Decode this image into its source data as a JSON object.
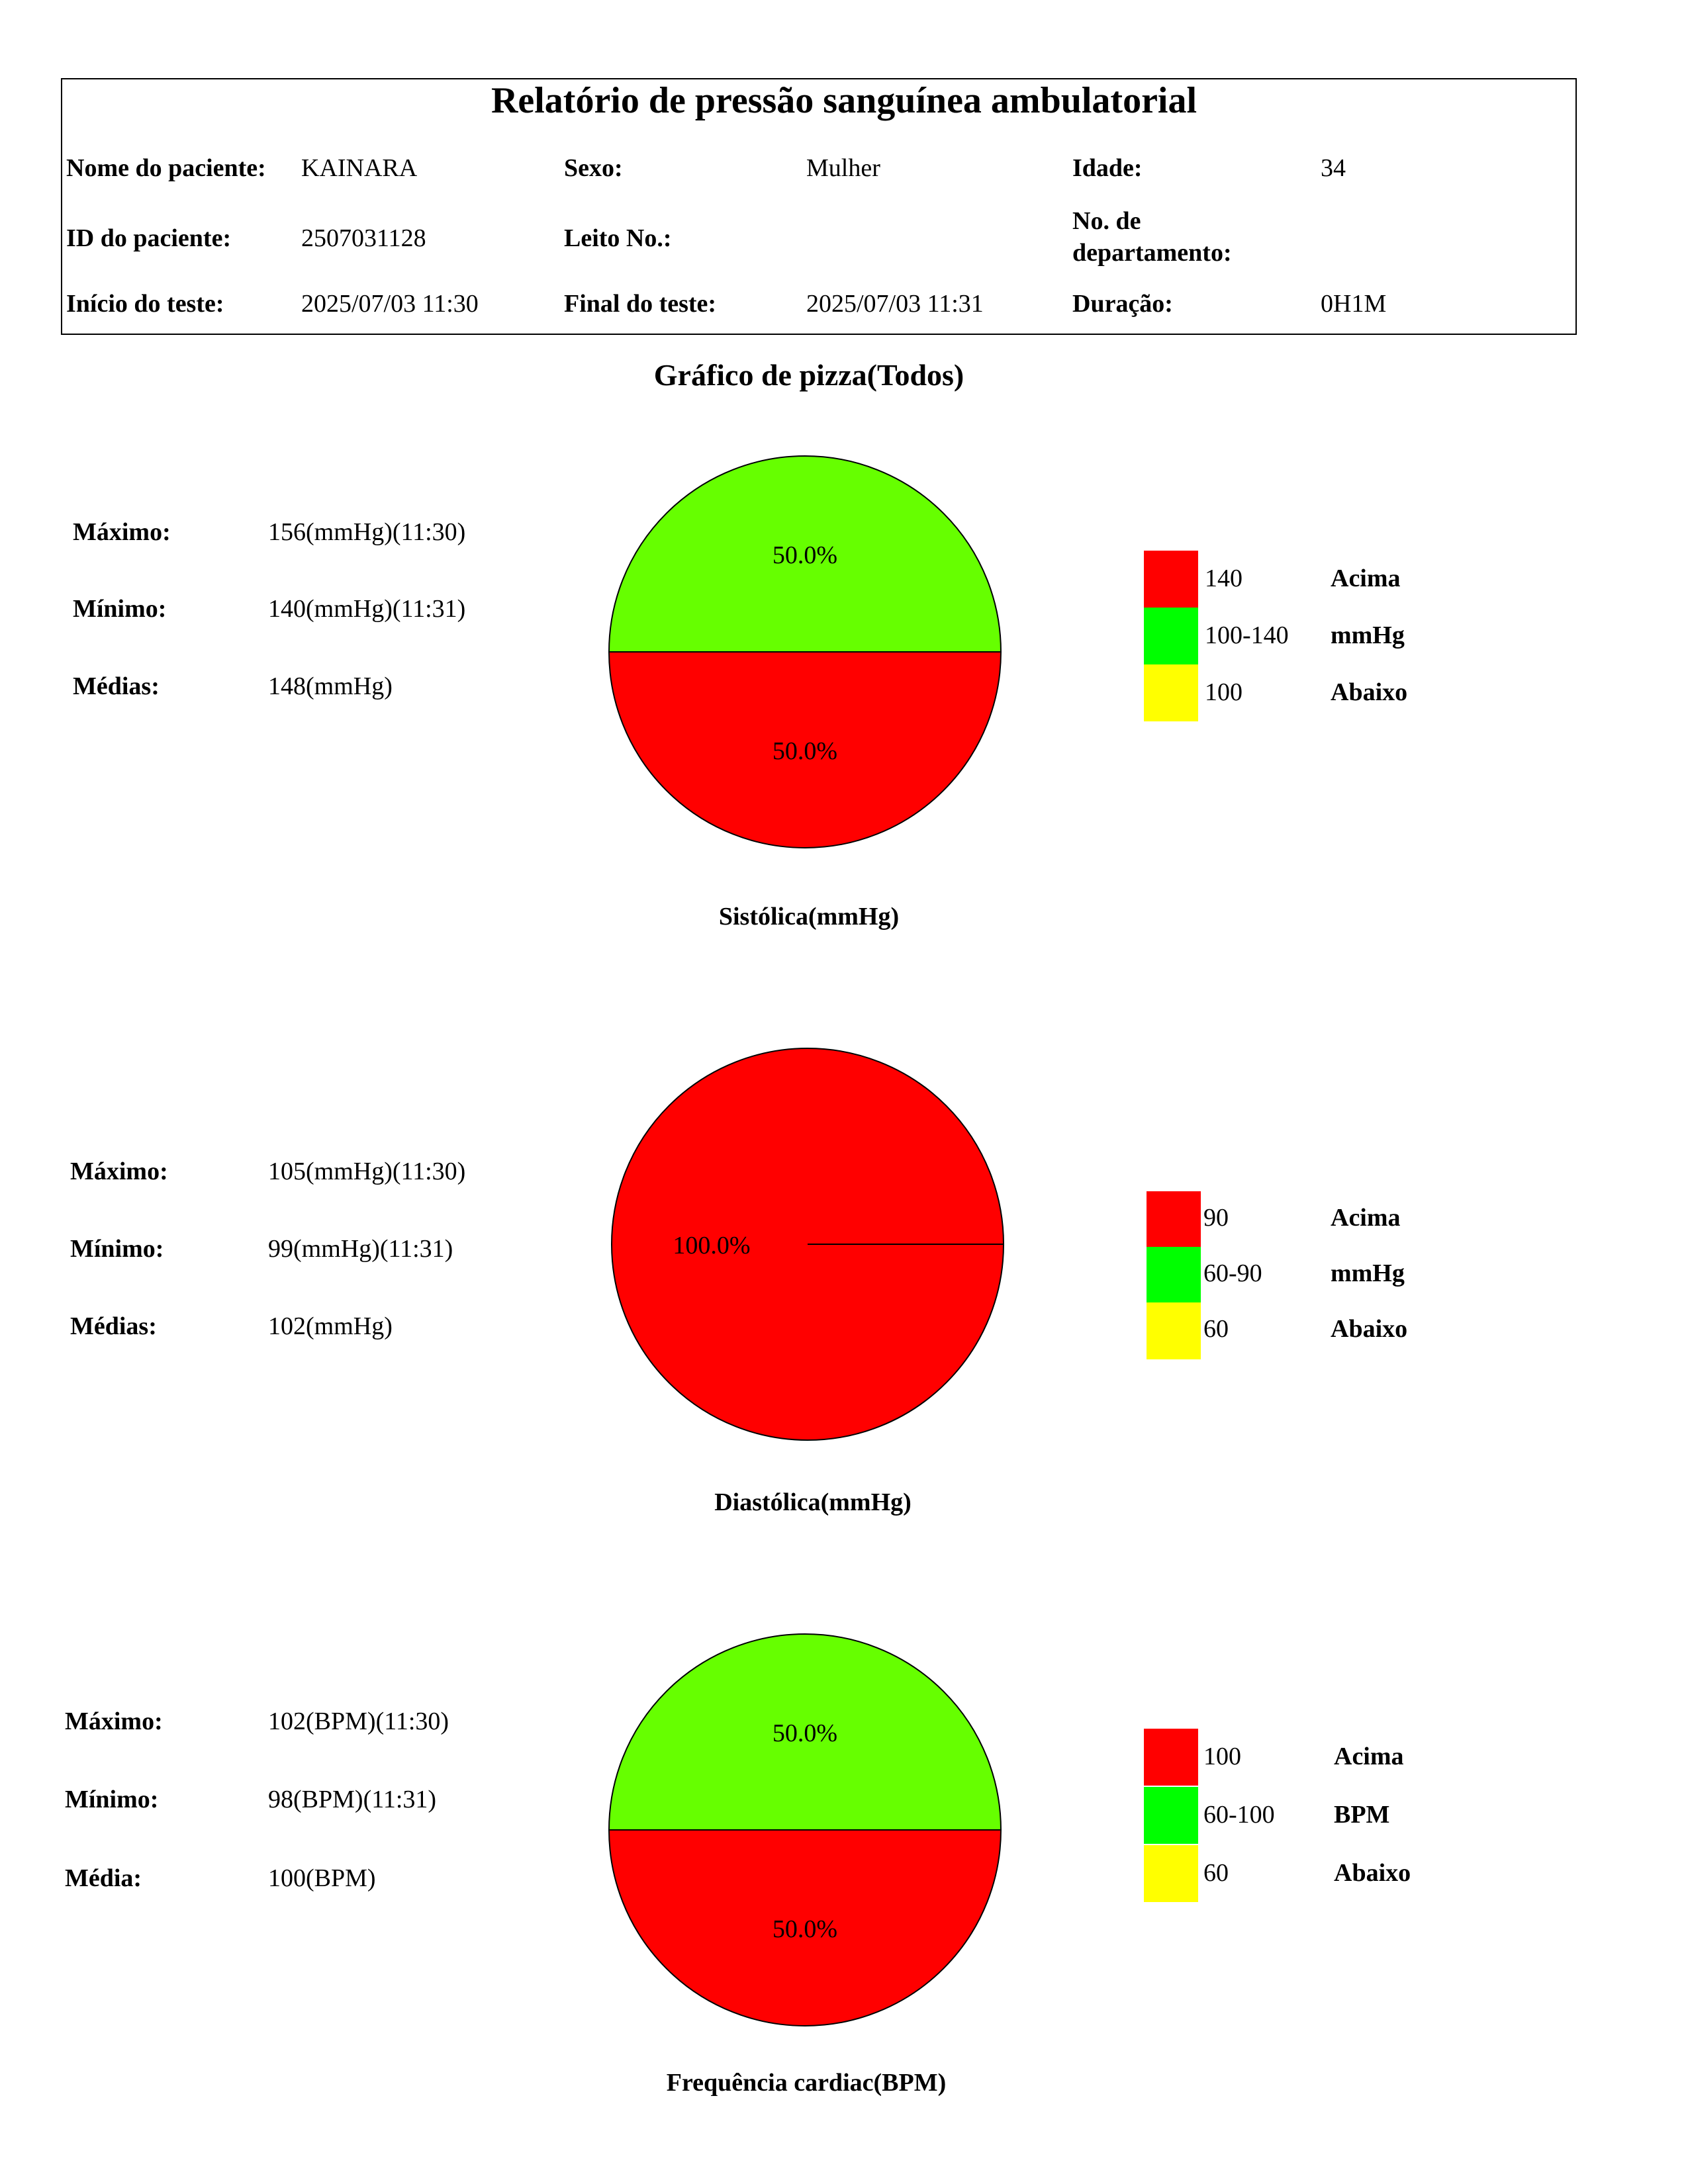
{
  "report": {
    "title": "Relatório de pressão sanguínea ambulatorial",
    "subtitle": "Gráfico de pizza(Todos)",
    "fields": {
      "patient_name_label": "Nome do paciente:",
      "patient_name": "KAINARA",
      "sex_label": "Sexo:",
      "sex": "Mulher",
      "age_label": "Idade:",
      "age": "34",
      "patient_id_label": "ID do paciente:",
      "patient_id": "2507031128",
      "bed_label": "Leito No.:",
      "bed": "",
      "dept_label_1": "No. de",
      "dept_label_2": "departamento:",
      "dept": "",
      "start_label": "Início do teste:",
      "start": "2025/07/03 11:30",
      "end_label": "Final do teste:",
      "end": "2025/07/03 11:31",
      "duration_label": "Duração:",
      "duration": "0H1M"
    }
  },
  "colors": {
    "above": "#ff0000",
    "normal": "#66ff00",
    "below": "#ffff00",
    "legend_normal": "#00ff00"
  },
  "chart_data": [
    {
      "type": "pie",
      "title": "Sistólica(mmHg)",
      "stats": [
        {
          "label": "Máximo:",
          "value": "156(mmHg)(11:30)"
        },
        {
          "label": "Mínimo:",
          "value": "140(mmHg)(11:31)"
        },
        {
          "label": "Médias:",
          "value": "148(mmHg)"
        }
      ],
      "slices": [
        {
          "category": "normal",
          "value": 50.0,
          "label": "50.0%"
        },
        {
          "category": "above",
          "value": 50.0,
          "label": "50.0%"
        }
      ],
      "legend": [
        {
          "category": "above",
          "range": "140",
          "text": "Acima"
        },
        {
          "category": "normal",
          "range": "100-140",
          "text": "mmHg"
        },
        {
          "category": "below",
          "range": "100",
          "text": "Abaixo"
        }
      ]
    },
    {
      "type": "pie",
      "title": "Diastólica(mmHg)",
      "stats": [
        {
          "label": "Máximo:",
          "value": "105(mmHg)(11:30)"
        },
        {
          "label": "Mínimo:",
          "value": "99(mmHg)(11:31)"
        },
        {
          "label": "Médias:",
          "value": "102(mmHg)"
        }
      ],
      "slices": [
        {
          "category": "above",
          "value": 100.0,
          "label": "100.0%"
        }
      ],
      "legend": [
        {
          "category": "above",
          "range": "90",
          "text": "Acima"
        },
        {
          "category": "normal",
          "range": "60-90",
          "text": "mmHg"
        },
        {
          "category": "below",
          "range": "60",
          "text": "Abaixo"
        }
      ]
    },
    {
      "type": "pie",
      "title": "Frequência cardiac(BPM)",
      "stats": [
        {
          "label": "Máximo:",
          "value": "102(BPM)(11:30)"
        },
        {
          "label": "Mínimo:",
          "value": "98(BPM)(11:31)"
        },
        {
          "label": "Média:",
          "value": "100(BPM)"
        }
      ],
      "slices": [
        {
          "category": "normal",
          "value": 50.0,
          "label": "50.0%"
        },
        {
          "category": "above",
          "value": 50.0,
          "label": "50.0%"
        }
      ],
      "legend": [
        {
          "category": "above",
          "range": "100",
          "text": "Acima"
        },
        {
          "category": "normal",
          "range": "60-100",
          "text": "BPM"
        },
        {
          "category": "below",
          "range": "60",
          "text": "Abaixo"
        }
      ]
    }
  ]
}
